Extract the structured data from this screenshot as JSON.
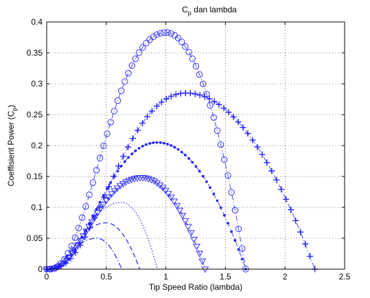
{
  "chart_data": {
    "type": "line",
    "title": {
      "main": "C",
      "sub": "p",
      "rest": " dan lambda"
    },
    "xlabel": "Tip Speed Ratio (lambda)",
    "ylabel": {
      "main": "Coeffisient Power (C",
      "sub": "p",
      "rest": ")"
    },
    "xlim": [
      0,
      2.5
    ],
    "ylim": [
      0,
      0.4
    ],
    "x_ticks": [
      0,
      0.5,
      1,
      1.5,
      2,
      2.5
    ],
    "x_tick_labels": [
      "0",
      "0.5",
      "1",
      "1.5",
      "2",
      "2.5"
    ],
    "y_ticks": [
      0,
      0.05,
      0.1,
      0.15,
      0.2,
      0.25,
      0.3,
      0.35,
      0.4
    ],
    "y_tick_labels": [
      "0",
      "0.05",
      "0.1",
      "0.15",
      "0.2",
      "0.25",
      "0.3",
      "0.35",
      "0.4"
    ],
    "grid": true,
    "color": "#2020ff",
    "series": [
      {
        "marker": "circle",
        "line": "dashdot",
        "peak_x": 1.0,
        "peak_y": 0.383,
        "x_end": 1.67,
        "width": 0.55
      },
      {
        "marker": "plus",
        "line": "dashdot",
        "peak_x": 1.17,
        "peak_y": 0.285,
        "x_end": 2.25,
        "width": 0.68
      },
      {
        "marker": "dot",
        "line": "dashdot",
        "peak_x": 0.93,
        "peak_y": 0.205,
        "x_end": 1.67,
        "width": 0.52
      },
      {
        "marker": "triangle-down",
        "line": "dashdot",
        "peak_x": 0.8,
        "peak_y": 0.148,
        "x_end": 1.33,
        "width": 0.4
      },
      {
        "marker": "none",
        "line": "dotted",
        "peak_x": 0.63,
        "peak_y": 0.108,
        "x_end": 0.93,
        "width": 0.3
      },
      {
        "marker": "none",
        "line": "dashed",
        "peak_x": 0.5,
        "peak_y": 0.075,
        "x_end": 0.78,
        "width": 0.26
      },
      {
        "marker": "none",
        "line": "dashdot",
        "peak_x": 0.42,
        "peak_y": 0.05,
        "x_end": 0.63,
        "width": 0.22
      }
    ]
  }
}
